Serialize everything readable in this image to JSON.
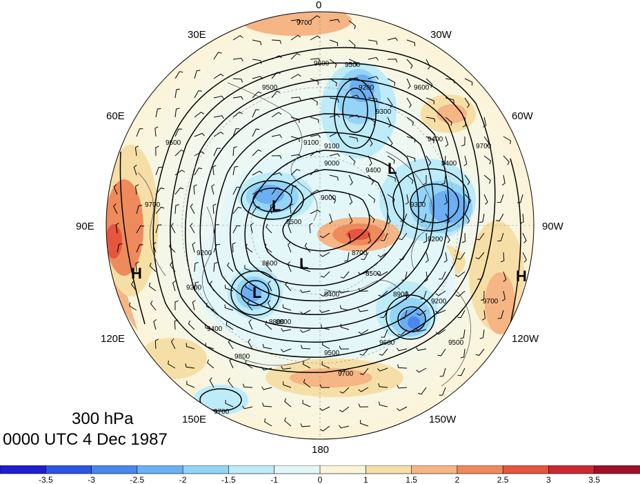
{
  "caption": {
    "level": "300 hPa",
    "time": "0000 UTC 4 Dec 1987"
  },
  "longitude_labels": [
    {
      "id": "0",
      "text": "0"
    },
    {
      "id": "30W",
      "text": "30W"
    },
    {
      "id": "60W",
      "text": "60W"
    },
    {
      "id": "90W",
      "text": "90W"
    },
    {
      "id": "120W",
      "text": "120W"
    },
    {
      "id": "150W",
      "text": "150W"
    },
    {
      "id": "180",
      "text": "180"
    },
    {
      "id": "150E",
      "text": "150E"
    },
    {
      "id": "120E",
      "text": "120E"
    },
    {
      "id": "90E",
      "text": "90E"
    },
    {
      "id": "60E",
      "text": "60E"
    },
    {
      "id": "30E",
      "text": "30E"
    }
  ],
  "contour_labels": [
    "9700",
    "9600",
    "9500",
    "9300",
    "9200",
    "9100",
    "9000",
    "9400",
    "8700",
    "8800",
    "8500",
    "8400",
    "8600",
    "9200",
    "9300",
    "9400",
    "9500",
    "9600",
    "9700",
    "9800",
    "9500",
    "9600",
    "9700",
    "9200",
    "9400",
    "9600",
    "9700",
    "9700",
    "9400",
    "9500",
    "9300",
    "9200",
    "9100",
    "9000",
    "8800",
    "8900",
    "9500",
    "9700"
  ],
  "centers": [
    {
      "name": "low-center-1",
      "text": "L"
    },
    {
      "name": "low-center-2",
      "text": "L"
    },
    {
      "name": "low-center-3",
      "text": "L"
    },
    {
      "name": "low-center-4",
      "text": "L"
    },
    {
      "name": "high-center-west",
      "text": "H"
    },
    {
      "name": "high-center-east",
      "text": "H"
    }
  ],
  "colorbar": {
    "colors": [
      "#1f1fd0",
      "#2c55e6",
      "#4a86ee",
      "#6cb0f3",
      "#93d4f7",
      "#bdebf8",
      "#e3f7f8",
      "#fcf4d8",
      "#f6dfa7",
      "#f5b584",
      "#ef8a5c",
      "#e6553e",
      "#cc2832",
      "#a11028"
    ],
    "tick_labels": [
      "-3.5",
      "-3",
      "-2.5",
      "-2",
      "-1.5",
      "-1",
      "0",
      "1",
      "1.5",
      "2",
      "2.5",
      "3",
      "3.5"
    ]
  }
}
